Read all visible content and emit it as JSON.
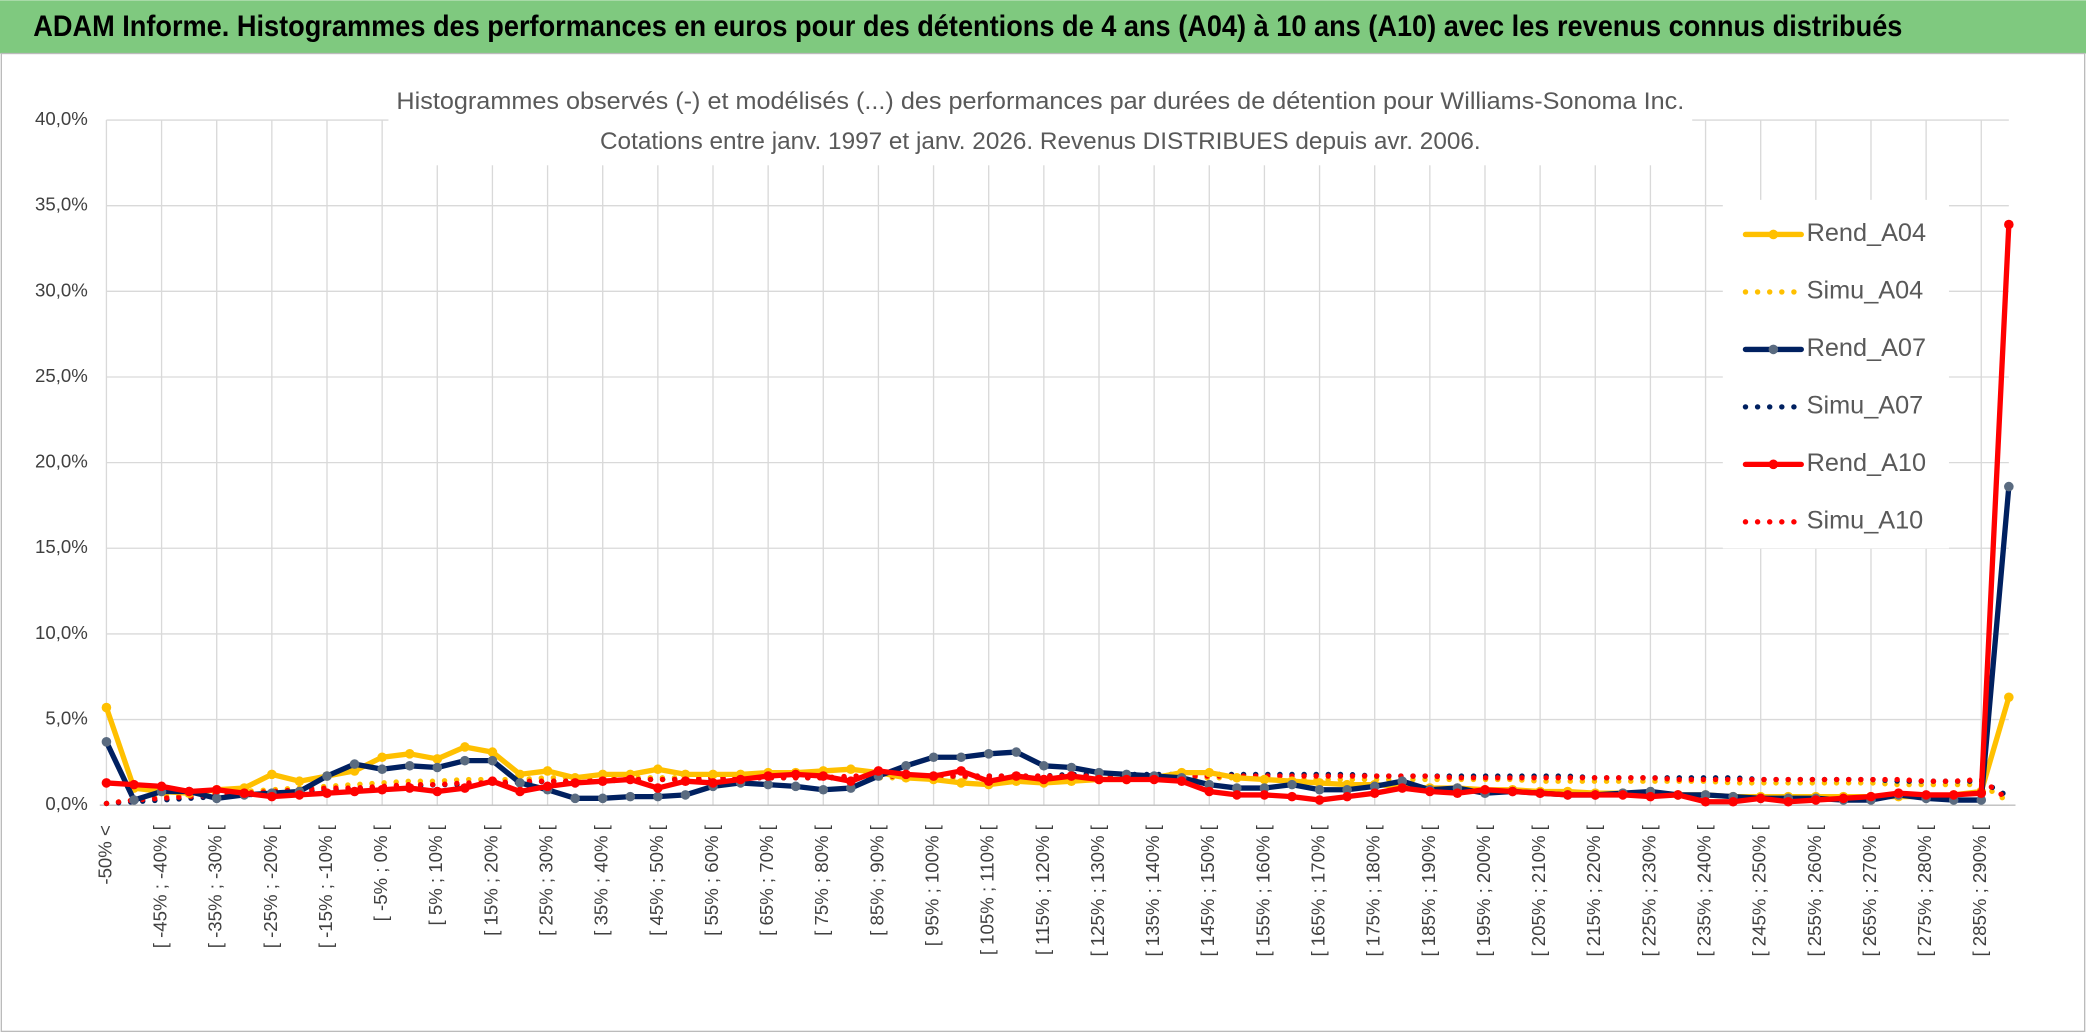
{
  "page_title": "ADAM Informe. Histogrammes des performances en euros pour des détentions de 4 ans (A04) à 10 ans (A10) avec les revenus connus distribués",
  "chart_data": {
    "type": "line",
    "title": [
      "Histogrammes observés (-) et modélisés (...) des performances par durées de détention pour Williams-Sonoma Inc.",
      "Cotations entre janv. 1997 et janv. 2026. Revenus DISTRIBUES depuis avr. 2006."
    ],
    "categories": [
      "-50% <",
      null,
      "[ -45% ; -40% [",
      null,
      "[ -35% ; -30% [",
      null,
      "[ -25% ; -20% [",
      null,
      "[ -15% ; -10% [",
      null,
      "[ -5% ; 0% [",
      null,
      "[ 5% ; 10% [",
      null,
      "[ 15% ; 20% [",
      null,
      "[ 25% ; 30% [",
      null,
      "[ 35% ; 40% [",
      null,
      "[ 45% ; 50% [",
      null,
      "[ 55% ; 60% [",
      null,
      "[ 65% ; 70% [",
      null,
      "[ 75% ; 80% [",
      null,
      "[ 85% ; 90% [",
      null,
      "[ 95% ; 100% [",
      null,
      "[ 105% ; 110% [",
      null,
      "[ 115% ; 120% [",
      null,
      "[ 125% ; 130% [",
      null,
      "[ 135% ; 140% [",
      null,
      "[ 145% ; 150% [",
      null,
      "[ 155% ; 160% [",
      null,
      "[ 165% ; 170% [",
      null,
      "[ 175% ; 180% [",
      null,
      "[ 185% ; 190% [",
      null,
      "[ 195% ; 200% [",
      null,
      "[ 205% ; 210% [",
      null,
      "[ 215% ; 220% [",
      null,
      "[ 225% ; 230% [",
      null,
      "[ 235% ; 240% [",
      null,
      "[ 245% ; 250% [",
      null,
      "[ 255% ; 260% [",
      null,
      "[ 265% ; 270% [",
      null,
      "[ 275% ; 280% [",
      null,
      "[ 285% ; 290% [",
      null
    ],
    "series": [
      {
        "name": "Rend_A04",
        "color": "#ffc000",
        "style": "solid",
        "markers": true,
        "values": [
          5.7,
          1.0,
          0.8,
          0.7,
          0.9,
          1.0,
          1.8,
          1.4,
          1.7,
          2.0,
          2.8,
          3.0,
          2.7,
          3.4,
          3.1,
          1.8,
          2.0,
          1.6,
          1.8,
          1.8,
          2.1,
          1.8,
          1.8,
          1.8,
          1.9,
          1.9,
          2.0,
          2.1,
          1.9,
          1.6,
          1.5,
          1.3,
          1.2,
          1.4,
          1.3,
          1.4,
          1.5,
          1.5,
          1.6,
          1.9,
          1.9,
          1.6,
          1.5,
          1.4,
          1.3,
          1.2,
          1.2,
          1.1,
          1.0,
          1.0,
          0.9,
          0.9,
          0.8,
          0.8,
          0.7,
          0.7,
          0.6,
          0.6,
          0.6,
          0.5,
          0.5,
          0.5,
          0.5,
          0.5,
          0.5,
          0.5,
          0.5,
          0.6,
          0.8,
          6.3
        ]
      },
      {
        "name": "Simu_A04",
        "color": "#ffc000",
        "style": "dotted",
        "markers": false,
        "values": [
          0.1,
          0.3,
          0.5,
          0.6,
          0.7,
          0.8,
          0.9,
          1.0,
          1.1,
          1.2,
          1.3,
          1.4,
          1.4,
          1.5,
          1.5,
          1.5,
          1.6,
          1.6,
          1.6,
          1.6,
          1.6,
          1.6,
          1.6,
          1.6,
          1.6,
          1.6,
          1.6,
          1.6,
          1.6,
          1.6,
          1.6,
          1.6,
          1.6,
          1.6,
          1.6,
          1.6,
          1.6,
          1.6,
          1.6,
          1.6,
          1.6,
          1.6,
          1.6,
          1.5,
          1.5,
          1.5,
          1.5,
          1.5,
          1.5,
          1.5,
          1.5,
          1.5,
          1.4,
          1.4,
          1.4,
          1.4,
          1.4,
          1.4,
          1.4,
          1.3,
          1.3,
          1.3,
          1.3,
          1.3,
          1.3,
          1.2,
          1.2,
          1.2,
          1.2,
          0.2
        ]
      },
      {
        "name": "Rend_A07",
        "color": "#002060",
        "marker_color": "#5a6b80",
        "style": "solid",
        "markers": true,
        "values": [
          3.7,
          0.3,
          0.8,
          0.8,
          0.4,
          0.6,
          0.7,
          0.8,
          1.7,
          2.4,
          2.1,
          2.3,
          2.2,
          2.6,
          2.6,
          1.3,
          0.9,
          0.4,
          0.4,
          0.5,
          0.5,
          0.6,
          1.1,
          1.3,
          1.2,
          1.1,
          0.9,
          1.0,
          1.7,
          2.3,
          2.8,
          2.8,
          3.0,
          3.1,
          2.3,
          2.2,
          1.9,
          1.8,
          1.7,
          1.6,
          1.2,
          1.0,
          1.0,
          1.2,
          0.9,
          0.9,
          1.1,
          1.4,
          0.9,
          1.0,
          0.7,
          0.8,
          0.7,
          0.6,
          0.6,
          0.7,
          0.8,
          0.6,
          0.6,
          0.5,
          0.4,
          0.4,
          0.4,
          0.3,
          0.3,
          0.6,
          0.4,
          0.3,
          0.3,
          18.6
        ]
      },
      {
        "name": "Simu_A07",
        "color": "#002060",
        "style": "dotted",
        "markers": false,
        "values": [
          0.1,
          0.2,
          0.3,
          0.4,
          0.5,
          0.6,
          0.7,
          0.8,
          0.9,
          1.0,
          1.0,
          1.1,
          1.2,
          1.2,
          1.3,
          1.3,
          1.4,
          1.4,
          1.4,
          1.5,
          1.5,
          1.5,
          1.5,
          1.6,
          1.6,
          1.6,
          1.6,
          1.6,
          1.7,
          1.7,
          1.7,
          1.7,
          1.7,
          1.7,
          1.7,
          1.8,
          1.8,
          1.8,
          1.8,
          1.8,
          1.8,
          1.8,
          1.8,
          1.8,
          1.8,
          1.8,
          1.7,
          1.7,
          1.7,
          1.7,
          1.7,
          1.7,
          1.7,
          1.7,
          1.6,
          1.6,
          1.6,
          1.6,
          1.6,
          1.6,
          1.5,
          1.5,
          1.5,
          1.5,
          1.5,
          1.4,
          1.4,
          1.4,
          1.4,
          0.5
        ]
      },
      {
        "name": "Rend_A10",
        "color": "#ff0000",
        "style": "solid",
        "markers": true,
        "values": [
          1.3,
          1.2,
          1.1,
          0.8,
          0.9,
          0.7,
          0.5,
          0.6,
          0.7,
          0.8,
          0.9,
          1.0,
          0.8,
          1.0,
          1.4,
          0.8,
          1.1,
          1.3,
          1.4,
          1.5,
          1.0,
          1.4,
          1.3,
          1.5,
          1.7,
          1.8,
          1.7,
          1.4,
          2.0,
          1.8,
          1.7,
          2.0,
          1.4,
          1.7,
          1.5,
          1.7,
          1.5,
          1.5,
          1.5,
          1.4,
          0.8,
          0.6,
          0.6,
          0.5,
          0.3,
          0.5,
          0.7,
          1.0,
          0.8,
          0.7,
          0.9,
          0.8,
          0.7,
          0.6,
          0.6,
          0.6,
          0.5,
          0.6,
          0.2,
          0.2,
          0.4,
          0.2,
          0.3,
          0.4,
          0.5,
          0.7,
          0.6,
          0.6,
          0.7,
          33.9
        ]
      },
      {
        "name": "Simu_A10",
        "color": "#ff0000",
        "style": "dotted",
        "markers": false,
        "values": [
          0.1,
          0.3,
          0.4,
          0.5,
          0.6,
          0.7,
          0.8,
          0.9,
          1.0,
          1.0,
          1.1,
          1.2,
          1.2,
          1.3,
          1.3,
          1.4,
          1.4,
          1.4,
          1.5,
          1.5,
          1.5,
          1.5,
          1.6,
          1.6,
          1.6,
          1.6,
          1.6,
          1.7,
          1.7,
          1.7,
          1.7,
          1.7,
          1.7,
          1.7,
          1.7,
          1.7,
          1.7,
          1.7,
          1.7,
          1.7,
          1.7,
          1.7,
          1.7,
          1.7,
          1.7,
          1.7,
          1.7,
          1.7,
          1.7,
          1.6,
          1.6,
          1.6,
          1.6,
          1.6,
          1.6,
          1.6,
          1.6,
          1.5,
          1.5,
          1.5,
          1.5,
          1.5,
          1.5,
          1.5,
          1.5,
          1.5,
          1.4,
          1.4,
          1.5,
          0.3
        ]
      }
    ],
    "ylim": [
      0,
      40
    ],
    "yticks": [
      {
        "value": 0,
        "label": "0,0%"
      },
      {
        "value": 5,
        "label": "5,0%"
      },
      {
        "value": 10,
        "label": "10,0%"
      },
      {
        "value": 15,
        "label": "15,0%"
      },
      {
        "value": 20,
        "label": "20,0%"
      },
      {
        "value": 25,
        "label": "25,0%"
      },
      {
        "value": 30,
        "label": "30,0%"
      },
      {
        "value": 35,
        "label": "35,0%"
      },
      {
        "value": 40,
        "label": "40,0%"
      }
    ],
    "grid": true,
    "legend": "right"
  }
}
